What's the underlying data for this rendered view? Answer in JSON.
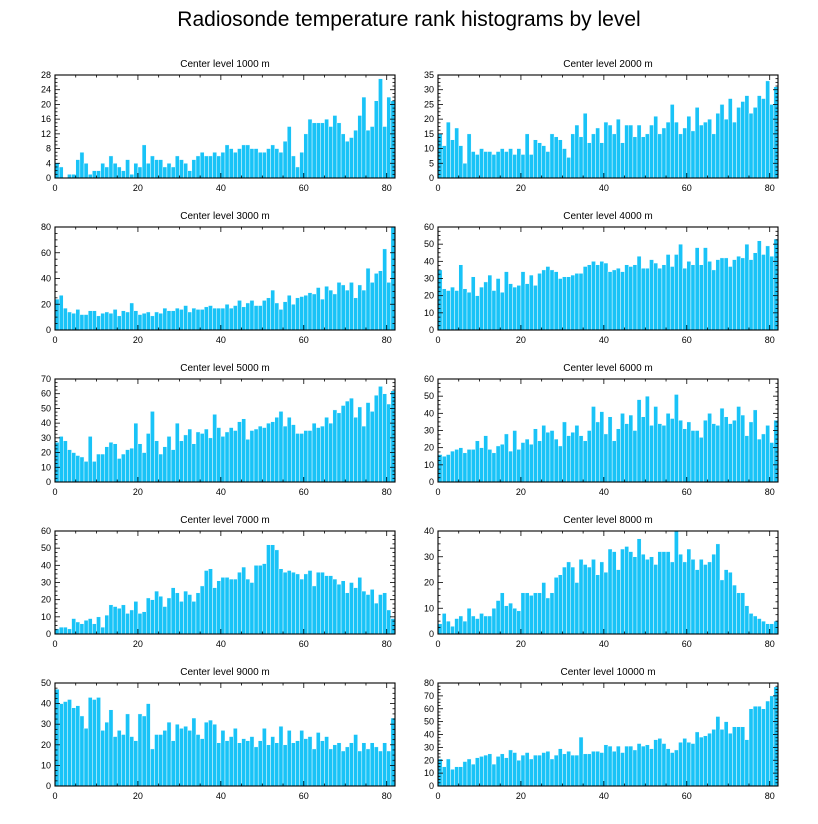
{
  "title": "Radiosonde temperature rank histograms by level",
  "colors": {
    "bar": "#19c3f7",
    "bar_edge": "#ffffff",
    "axis": "#000000"
  },
  "chart_data": [
    {
      "type": "bar",
      "title": "Center level 1000 m",
      "xlim": [
        0,
        82
      ],
      "ylim": [
        0,
        28
      ],
      "xticks": [
        0,
        20,
        40,
        60,
        80
      ],
      "yticks": [
        0,
        4,
        8,
        12,
        16,
        20,
        24,
        28
      ],
      "values": [
        4,
        3,
        0,
        1,
        1,
        5,
        7,
        4,
        1,
        2,
        2,
        4,
        3,
        6,
        4,
        3,
        2,
        5,
        1,
        4,
        3,
        9,
        4,
        6,
        5,
        5,
        3,
        4,
        3,
        6,
        5,
        4,
        2,
        5,
        6,
        7,
        6,
        6,
        7,
        6,
        7,
        9,
        8,
        7,
        8,
        9,
        9,
        8,
        8,
        7,
        7,
        8,
        9,
        8,
        7,
        10,
        14,
        6,
        3,
        7,
        12,
        16,
        15,
        15,
        15,
        16,
        14,
        17,
        15,
        12,
        10,
        11,
        13,
        17,
        22,
        13,
        14,
        21,
        27,
        14,
        22,
        21
      ]
    },
    {
      "type": "bar",
      "title": "Center level 2000 m",
      "xlim": [
        0,
        82
      ],
      "ylim": [
        0,
        35
      ],
      "xticks": [
        0,
        20,
        40,
        60,
        80
      ],
      "yticks": [
        0,
        5,
        10,
        15,
        20,
        25,
        30,
        35
      ],
      "values": [
        15,
        11,
        19,
        13,
        17,
        11,
        5,
        15,
        9,
        8,
        10,
        9,
        9,
        8,
        9,
        10,
        9,
        10,
        8,
        10,
        8,
        15,
        8,
        13,
        12,
        11,
        9,
        15,
        14,
        13,
        10,
        7,
        15,
        18,
        14,
        22,
        12,
        15,
        17,
        12,
        19,
        18,
        15,
        20,
        12,
        18,
        18,
        14,
        18,
        14,
        15,
        18,
        21,
        15,
        17,
        19,
        25,
        19,
        15,
        17,
        21,
        16,
        24,
        18,
        19,
        20,
        15,
        22,
        25,
        20,
        27,
        19,
        24,
        26,
        28,
        22,
        24,
        28,
        27,
        33,
        25,
        31
      ]
    },
    {
      "type": "bar",
      "title": "Center level 3000 m",
      "xlim": [
        0,
        82
      ],
      "ylim": [
        0,
        80
      ],
      "xticks": [
        0,
        20,
        40,
        60,
        80
      ],
      "yticks": [
        0,
        20,
        40,
        60,
        80
      ],
      "values": [
        24,
        27,
        17,
        14,
        13,
        16,
        12,
        12,
        15,
        15,
        11,
        13,
        14,
        13,
        16,
        11,
        15,
        14,
        21,
        15,
        12,
        13,
        14,
        11,
        14,
        13,
        17,
        15,
        15,
        17,
        16,
        19,
        14,
        17,
        16,
        16,
        18,
        19,
        17,
        17,
        17,
        20,
        17,
        19,
        23,
        18,
        21,
        23,
        19,
        19,
        23,
        25,
        31,
        21,
        16,
        22,
        27,
        20,
        25,
        26,
        27,
        29,
        28,
        33,
        24,
        34,
        31,
        28,
        37,
        35,
        31,
        37,
        25,
        35,
        31,
        48,
        37,
        44,
        46,
        63,
        37,
        80
      ]
    },
    {
      "type": "bar",
      "title": "Center level 4000 m",
      "xlim": [
        0,
        82
      ],
      "ylim": [
        0,
        60
      ],
      "xticks": [
        0,
        20,
        40,
        60,
        80
      ],
      "yticks": [
        0,
        10,
        20,
        30,
        40,
        50,
        60
      ],
      "values": [
        35,
        24,
        23,
        25,
        23,
        38,
        24,
        22,
        31,
        20,
        25,
        28,
        32,
        23,
        30,
        22,
        34,
        27,
        25,
        26,
        34,
        27,
        32,
        26,
        33,
        35,
        37,
        35,
        34,
        30,
        31,
        31,
        32,
        33,
        33,
        37,
        38,
        40,
        38,
        40,
        39,
        34,
        35,
        36,
        34,
        38,
        37,
        38,
        43,
        36,
        36,
        41,
        39,
        36,
        38,
        44,
        37,
        44,
        50,
        36,
        40,
        38,
        48,
        38,
        48,
        40,
        35,
        41,
        42,
        42,
        37,
        41,
        43,
        42,
        50,
        41,
        45,
        52,
        44,
        49,
        43,
        53
      ]
    },
    {
      "type": "bar",
      "title": "Center level 5000 m",
      "xlim": [
        0,
        82
      ],
      "ylim": [
        0,
        70
      ],
      "xticks": [
        0,
        20,
        40,
        60,
        80
      ],
      "yticks": [
        0,
        10,
        20,
        30,
        40,
        50,
        60,
        70
      ],
      "values": [
        27,
        31,
        28,
        22,
        20,
        18,
        17,
        14,
        31,
        14,
        19,
        19,
        24,
        27,
        26,
        16,
        19,
        22,
        23,
        40,
        26,
        20,
        33,
        48,
        28,
        19,
        24,
        31,
        22,
        40,
        28,
        32,
        36,
        26,
        34,
        33,
        36,
        30,
        46,
        37,
        31,
        34,
        37,
        35,
        41,
        43,
        29,
        35,
        36,
        38,
        37,
        40,
        41,
        44,
        48,
        38,
        44,
        39,
        33,
        33,
        35,
        35,
        40,
        37,
        38,
        44,
        40,
        49,
        47,
        52,
        55,
        57,
        44,
        51,
        38,
        54,
        48,
        59,
        65,
        60,
        53,
        62
      ]
    },
    {
      "type": "bar",
      "title": "Center level 6000 m",
      "xlim": [
        0,
        82
      ],
      "ylim": [
        0,
        60
      ],
      "xticks": [
        0,
        20,
        40,
        60,
        80
      ],
      "yticks": [
        0,
        10,
        20,
        30,
        40,
        50,
        60
      ],
      "values": [
        16,
        15,
        16,
        18,
        19,
        20,
        17,
        19,
        19,
        24,
        20,
        27,
        19,
        17,
        21,
        22,
        28,
        18,
        30,
        19,
        23,
        25,
        22,
        31,
        24,
        33,
        29,
        30,
        25,
        21,
        35,
        27,
        29,
        33,
        27,
        24,
        30,
        44,
        35,
        41,
        28,
        38,
        24,
        31,
        40,
        34,
        39,
        30,
        48,
        38,
        50,
        33,
        44,
        34,
        33,
        40,
        37,
        51,
        36,
        31,
        35,
        30,
        30,
        26,
        36,
        40,
        34,
        33,
        43,
        38,
        34,
        36,
        44,
        39,
        27,
        35,
        42,
        25,
        28,
        33,
        23,
        36
      ]
    },
    {
      "type": "bar",
      "title": "Center level 7000 m",
      "xlim": [
        0,
        82
      ],
      "ylim": [
        0,
        60
      ],
      "xticks": [
        0,
        20,
        40,
        60,
        80
      ],
      "yticks": [
        0,
        10,
        20,
        30,
        40,
        50,
        60
      ],
      "values": [
        3,
        4,
        4,
        3,
        9,
        7,
        6,
        8,
        9,
        6,
        10,
        4,
        11,
        17,
        16,
        15,
        17,
        12,
        14,
        19,
        12,
        13,
        21,
        20,
        25,
        22,
        16,
        21,
        27,
        24,
        19,
        25,
        23,
        19,
        24,
        28,
        37,
        38,
        27,
        31,
        33,
        33,
        32,
        32,
        36,
        39,
        32,
        30,
        40,
        40,
        41,
        52,
        52,
        49,
        38,
        36,
        37,
        36,
        35,
        32,
        35,
        37,
        28,
        36,
        36,
        34,
        34,
        32,
        29,
        31,
        24,
        30,
        27,
        33,
        25,
        23,
        26,
        18,
        23,
        24,
        14,
        9
      ]
    },
    {
      "type": "bar",
      "title": "Center level 8000 m",
      "xlim": [
        0,
        82
      ],
      "ylim": [
        0,
        40
      ],
      "xticks": [
        0,
        20,
        40,
        60,
        80
      ],
      "yticks": [
        0,
        10,
        20,
        30,
        40
      ],
      "values": [
        4,
        8,
        5,
        3,
        6,
        7,
        5,
        10,
        7,
        6,
        8,
        7,
        7,
        10,
        13,
        16,
        11,
        12,
        10,
        9,
        16,
        16,
        15,
        16,
        16,
        20,
        14,
        16,
        22,
        23,
        26,
        28,
        26,
        20,
        29,
        27,
        26,
        29,
        23,
        28,
        24,
        33,
        32,
        25,
        33,
        34,
        32,
        30,
        37,
        31,
        29,
        30,
        27,
        32,
        32,
        32,
        28,
        40,
        31,
        28,
        33,
        29,
        25,
        29,
        27,
        28,
        31,
        35,
        21,
        25,
        24,
        19,
        16,
        16,
        11,
        8,
        7,
        6,
        5,
        4,
        4,
        5
      ]
    },
    {
      "type": "bar",
      "title": "Center level 9000 m",
      "xlim": [
        0,
        82
      ],
      "ylim": [
        0,
        50
      ],
      "xticks": [
        0,
        20,
        40,
        60,
        80
      ],
      "yticks": [
        0,
        10,
        20,
        30,
        40,
        50
      ],
      "values": [
        47,
        40,
        41,
        42,
        38,
        39,
        34,
        28,
        43,
        42,
        43,
        27,
        31,
        37,
        24,
        27,
        25,
        35,
        24,
        22,
        35,
        34,
        40,
        18,
        25,
        25,
        27,
        31,
        22,
        30,
        28,
        29,
        27,
        33,
        25,
        23,
        31,
        32,
        30,
        21,
        27,
        22,
        24,
        28,
        21,
        23,
        22,
        24,
        19,
        22,
        28,
        20,
        24,
        21,
        29,
        20,
        27,
        21,
        22,
        27,
        23,
        24,
        18,
        26,
        22,
        24,
        18,
        20,
        21,
        17,
        19,
        21,
        25,
        17,
        21,
        18,
        21,
        19,
        17,
        21,
        17,
        33
      ]
    },
    {
      "type": "bar",
      "title": "Center level 10000 m",
      "xlim": [
        0,
        82
      ],
      "ylim": [
        0,
        80
      ],
      "xticks": [
        0,
        20,
        40,
        60,
        80
      ],
      "yticks": [
        0,
        10,
        20,
        30,
        40,
        50,
        60,
        70,
        80
      ],
      "values": [
        21,
        15,
        21,
        13,
        15,
        15,
        19,
        21,
        17,
        22,
        23,
        24,
        25,
        17,
        23,
        25,
        22,
        28,
        26,
        20,
        24,
        26,
        21,
        24,
        24,
        26,
        27,
        21,
        24,
        29,
        25,
        27,
        24,
        24,
        38,
        25,
        25,
        27,
        27,
        26,
        32,
        31,
        27,
        31,
        26,
        31,
        31,
        28,
        33,
        31,
        32,
        29,
        36,
        37,
        33,
        29,
        26,
        28,
        34,
        37,
        34,
        33,
        42,
        38,
        39,
        41,
        44,
        54,
        44,
        50,
        41,
        46,
        46,
        46,
        36,
        60,
        62,
        62,
        60,
        66,
        70,
        77
      ]
    }
  ]
}
